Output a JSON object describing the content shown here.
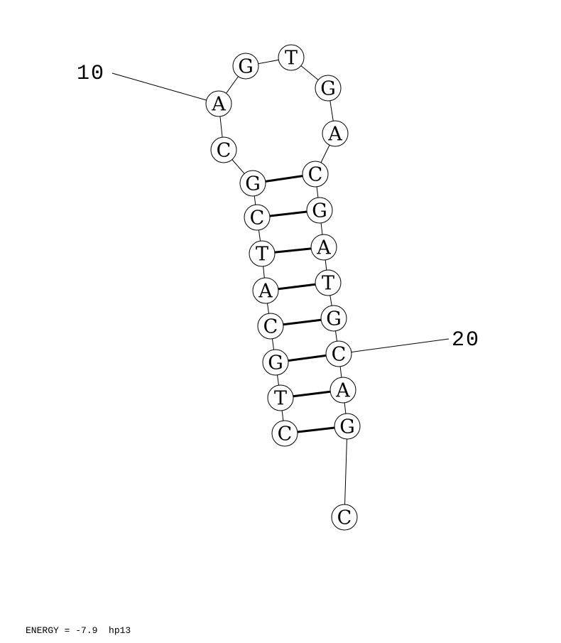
{
  "sequence": [
    "C",
    "T",
    "G",
    "C",
    "A",
    "T",
    "C",
    "G",
    "C",
    "A",
    "G",
    "T",
    "G",
    "A",
    "C",
    "G",
    "A",
    "T",
    "G",
    "C",
    "A",
    "G",
    "C"
  ],
  "pairs": [
    [
      1,
      22
    ],
    [
      2,
      21
    ],
    [
      3,
      20
    ],
    [
      4,
      19
    ],
    [
      5,
      18
    ],
    [
      6,
      17
    ],
    [
      7,
      16
    ],
    [
      8,
      15
    ]
  ],
  "index_labels": [
    {
      "index": 10,
      "text": "10"
    },
    {
      "index": 20,
      "text": "20"
    }
  ],
  "footer": {
    "energy_label": "ENERGY = -7.9",
    "structure_name": "hp13"
  }
}
